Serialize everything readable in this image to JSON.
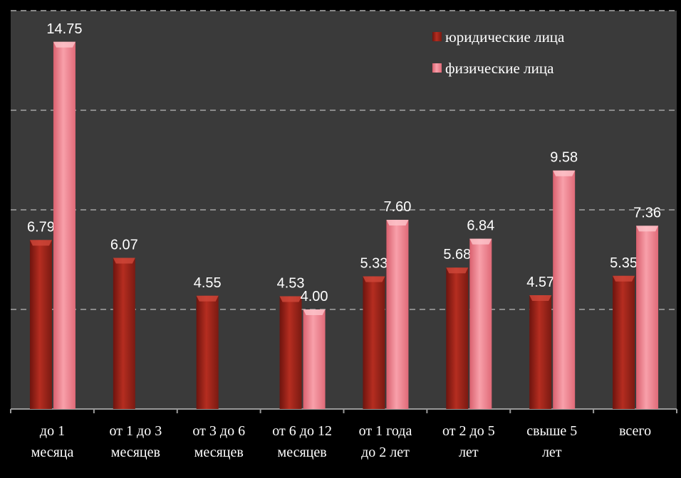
{
  "chart_data": {
    "type": "bar",
    "categories": [
      "до 1\nмесяца",
      "от 1 до 3\nмесяцев",
      "от 3 до 6\nмесяцев",
      "от 6 до 12\nмесяцев",
      "от 1 года\nдо 2 лет",
      "от 2 до 5\nлет",
      "свыше 5\nлет",
      "всего"
    ],
    "series": [
      {
        "name": "юридические лица",
        "color": "#a8271c",
        "values": [
          6.79,
          6.07,
          4.55,
          4.53,
          5.33,
          5.68,
          4.57,
          5.35
        ],
        "value_labels": [
          "6.79",
          "6.07",
          "4.55",
          "4.53",
          "5.33",
          "5.68",
          "4.57",
          "5.35"
        ]
      },
      {
        "name": "физические лица",
        "color": "#f07c8c",
        "values": [
          14.75,
          null,
          null,
          4.0,
          7.6,
          6.84,
          9.58,
          7.36
        ],
        "value_labels": [
          "14.75",
          null,
          null,
          "4.00",
          "7.60",
          "6.84",
          "9.58",
          "7.36"
        ]
      }
    ],
    "ylim": [
      0,
      16
    ],
    "yticks": [
      0,
      4,
      8,
      12,
      16
    ],
    "grid": true,
    "legend": "top-right"
  }
}
